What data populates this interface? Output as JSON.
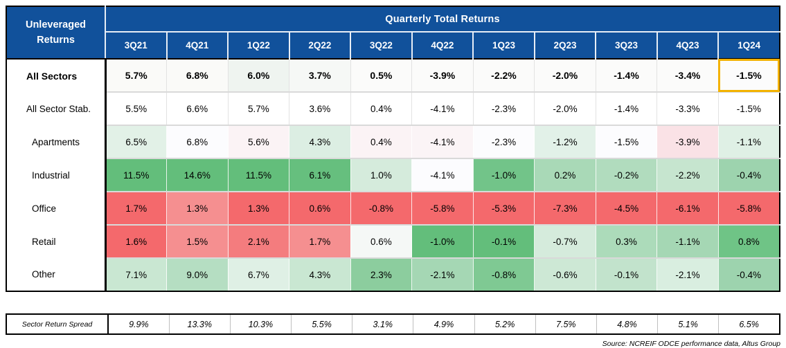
{
  "header": {
    "corner_line1": "Unleveraged",
    "corner_line2": "Returns",
    "title": "Quarterly Total Returns",
    "quarters": [
      "3Q21",
      "4Q21",
      "1Q22",
      "2Q22",
      "3Q22",
      "4Q22",
      "1Q23",
      "2Q23",
      "3Q23",
      "4Q23",
      "1Q24"
    ]
  },
  "table": {
    "rows": [
      {
        "label": "All Sectors",
        "bold": true,
        "plain": true,
        "indent": false,
        "highlight_col": 10,
        "values": [
          "5.7%",
          "6.8%",
          "6.0%",
          "3.7%",
          "0.5%",
          "-3.9%",
          "-2.2%",
          "-2.0%",
          "-1.4%",
          "-3.4%",
          "-1.5%"
        ],
        "colors": [
          "#FAFAF8",
          "#FAFAF8",
          "#EFF4F0",
          "#F6F8F6",
          "#FBFBFA",
          "#FBFBFA",
          "#FBFBFA",
          "#FBFBFA",
          "#FBFBFA",
          "#FBFBFA",
          "#FCFCFC"
        ]
      },
      {
        "label": "All Sector Stab.",
        "bold": false,
        "plain": true,
        "indent": false,
        "highlight_col": -1,
        "values": [
          "5.5%",
          "6.6%",
          "5.7%",
          "3.6%",
          "0.4%",
          "-4.1%",
          "-2.3%",
          "-2.0%",
          "-1.4%",
          "-3.3%",
          "-1.5%"
        ],
        "colors": [
          "#FFFFFF",
          "#FFFFFF",
          "#FFFFFF",
          "#FFFFFF",
          "#FFFFFF",
          "#FFFFFF",
          "#FFFFFF",
          "#FFFFFF",
          "#FFFFFF",
          "#FFFFFF",
          "#FFFFFF"
        ]
      },
      {
        "label": "Apartments",
        "bold": false,
        "plain": false,
        "indent": true,
        "highlight_col": -1,
        "values": [
          "6.5%",
          "6.8%",
          "5.6%",
          "4.3%",
          "0.4%",
          "-4.1%",
          "-2.3%",
          "-1.2%",
          "-1.5%",
          "-3.9%",
          "-1.1%"
        ],
        "colors": [
          "#E2F1E7",
          "#FCFCFE",
          "#FBF3F5",
          "#DCEEE3",
          "#FBF3F5",
          "#FBF4F6",
          "#FCFCFE",
          "#E2F1E8",
          "#FCFCFE",
          "#FAE2E6",
          "#DFF0E5"
        ]
      },
      {
        "label": "Industrial",
        "bold": false,
        "plain": false,
        "indent": true,
        "highlight_col": -1,
        "values": [
          "11.5%",
          "14.6%",
          "11.5%",
          "6.1%",
          "1.0%",
          "-4.1%",
          "-1.0%",
          "0.2%",
          "-0.2%",
          "-2.2%",
          "-0.4%"
        ],
        "colors": [
          "#63BE7B",
          "#63BE7B",
          "#63BE7B",
          "#66BF7E",
          "#D5EBDC",
          "#FCFCFE",
          "#72C489",
          "#A9D9B7",
          "#B1DCBE",
          "#C6E5CF",
          "#9DD3AE"
        ]
      },
      {
        "label": "Office",
        "bold": false,
        "plain": false,
        "indent": true,
        "highlight_col": -1,
        "values": [
          "1.7%",
          "1.3%",
          "1.3%",
          "0.6%",
          "-0.8%",
          "-5.8%",
          "-5.3%",
          "-7.3%",
          "-4.5%",
          "-6.1%",
          "-5.8%"
        ],
        "colors": [
          "#F4696C",
          "#F58F90",
          "#F4696C",
          "#F4696C",
          "#F4696C",
          "#F4696C",
          "#F4696C",
          "#F4696C",
          "#F4696C",
          "#F4696C",
          "#F4696C"
        ]
      },
      {
        "label": "Retail",
        "bold": false,
        "plain": false,
        "indent": true,
        "highlight_col": -1,
        "values": [
          "1.6%",
          "1.5%",
          "2.1%",
          "1.7%",
          "0.6%",
          "-1.0%",
          "-0.1%",
          "-0.7%",
          "0.3%",
          "-1.1%",
          "0.8%"
        ],
        "colors": [
          "#F4696C",
          "#F58F90",
          "#F47C7E",
          "#F58F90",
          "#F5F8F6",
          "#63BE7B",
          "#63BE7B",
          "#D5EBDC",
          "#ACDBBA",
          "#A5D7B4",
          "#6FC486"
        ]
      },
      {
        "label": "Other",
        "bold": false,
        "plain": false,
        "indent": true,
        "highlight_col": -1,
        "values": [
          "7.1%",
          "9.0%",
          "6.7%",
          "4.3%",
          "2.3%",
          "-2.1%",
          "-0.8%",
          "-0.6%",
          "-0.1%",
          "-2.1%",
          "-0.4%"
        ],
        "colors": [
          "#C9E7D2",
          "#B5DEC2",
          "#DFF0E5",
          "#C9E7D2",
          "#8CCD9E",
          "#A5D7B4",
          "#7FC993",
          "#CDE8D5",
          "#C2E3CC",
          "#D9EEE0",
          "#9DD3AE"
        ]
      }
    ]
  },
  "spread": {
    "label": "Sector Return Spread",
    "values": [
      "9.9%",
      "13.3%",
      "10.3%",
      "5.5%",
      "3.1%",
      "4.9%",
      "5.2%",
      "7.5%",
      "4.8%",
      "5.1%",
      "6.5%"
    ]
  },
  "source": "Source: NCREIF ODCE performance data, Altus Group",
  "colors": {
    "header_blue": "#11519B",
    "highlight_gold": "#F3B200",
    "scale_low_red": "#F4696C",
    "scale_high_green": "#63BE7B",
    "row_separator": "#D9D9D9"
  },
  "chart_data": {
    "type": "heatmap",
    "title": "Quarterly Total Returns",
    "row_header": "Unleveraged Returns",
    "categories": [
      "3Q21",
      "4Q21",
      "1Q22",
      "2Q22",
      "3Q22",
      "4Q22",
      "1Q23",
      "2Q23",
      "3Q23",
      "4Q23",
      "1Q24"
    ],
    "units": "%",
    "series": [
      {
        "name": "All Sectors",
        "values": [
          5.7,
          6.8,
          6.0,
          3.7,
          0.5,
          -3.9,
          -2.2,
          -2.0,
          -1.4,
          -3.4,
          -1.5
        ]
      },
      {
        "name": "All Sector Stab.",
        "values": [
          5.5,
          6.6,
          5.7,
          3.6,
          0.4,
          -4.1,
          -2.3,
          -2.0,
          -1.4,
          -3.3,
          -1.5
        ]
      },
      {
        "name": "Apartments",
        "values": [
          6.5,
          6.8,
          5.6,
          4.3,
          0.4,
          -4.1,
          -2.3,
          -1.2,
          -1.5,
          -3.9,
          -1.1
        ]
      },
      {
        "name": "Industrial",
        "values": [
          11.5,
          14.6,
          11.5,
          6.1,
          1.0,
          -4.1,
          -1.0,
          0.2,
          -0.2,
          -2.2,
          -0.4
        ]
      },
      {
        "name": "Office",
        "values": [
          1.7,
          1.3,
          1.3,
          0.6,
          -0.8,
          -5.8,
          -5.3,
          -7.3,
          -4.5,
          -6.1,
          -5.8
        ]
      },
      {
        "name": "Retail",
        "values": [
          1.6,
          1.5,
          2.1,
          1.7,
          0.6,
          -1.0,
          -0.1,
          -0.7,
          0.3,
          -1.1,
          0.8
        ]
      },
      {
        "name": "Other",
        "values": [
          7.1,
          9.0,
          6.7,
          4.3,
          2.3,
          -2.1,
          -0.8,
          -0.6,
          -0.1,
          -2.1,
          -0.4
        ]
      }
    ],
    "extra_rows": [
      {
        "name": "Sector Return Spread",
        "values": [
          9.9,
          13.3,
          10.3,
          5.5,
          3.1,
          4.9,
          5.2,
          7.5,
          4.8,
          5.1,
          6.5
        ]
      }
    ],
    "annotations": [
      "All Sectors 1Q24 value (-1.5%) outlined in gold"
    ],
    "layout": {
      "color_scale": "red = lowest sector return in column, green = highest",
      "legend": false
    }
  }
}
